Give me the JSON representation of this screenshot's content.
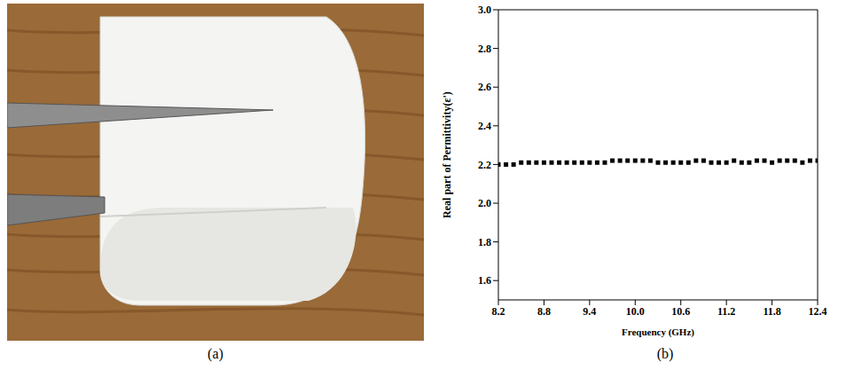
{
  "photo": {
    "caption": "(a)"
  },
  "chart_data": {
    "type": "scatter",
    "caption": "(b)",
    "x_label": "Frequency (GHz)",
    "y_label": "Real part of Permittivity(ε')",
    "x": [
      8.2,
      8.3,
      8.4,
      8.5,
      8.6,
      8.7,
      8.8,
      8.9,
      9.0,
      9.1,
      9.2,
      9.3,
      9.4,
      9.5,
      9.6,
      9.7,
      9.8,
      9.9,
      10.0,
      10.1,
      10.2,
      10.3,
      10.4,
      10.5,
      10.6,
      10.7,
      10.8,
      10.9,
      11.0,
      11.1,
      11.2,
      11.3,
      11.4,
      11.5,
      11.6,
      11.7,
      11.8,
      11.9,
      12.0,
      12.1,
      12.2,
      12.3,
      12.4
    ],
    "values": [
      2.2,
      2.2,
      2.2,
      2.21,
      2.21,
      2.21,
      2.21,
      2.21,
      2.21,
      2.21,
      2.21,
      2.21,
      2.21,
      2.21,
      2.21,
      2.22,
      2.22,
      2.22,
      2.22,
      2.22,
      2.22,
      2.21,
      2.21,
      2.21,
      2.21,
      2.21,
      2.22,
      2.22,
      2.21,
      2.21,
      2.21,
      2.22,
      2.21,
      2.21,
      2.22,
      2.22,
      2.21,
      2.22,
      2.22,
      2.22,
      2.21,
      2.22,
      2.22
    ],
    "color": "#000000",
    "marker": "square",
    "xlim": [
      8.2,
      12.4
    ],
    "xticks": [
      8.2,
      8.8,
      9.4,
      {
        "value": 10,
        "label": "10.0"
      },
      10.6,
      11.2,
      11.8,
      12.4
    ],
    "ylim": [
      1.5,
      3
    ],
    "yticks": [
      1.6,
      1.8,
      {
        "value": 2,
        "label": "2.0"
      },
      2.2,
      2.4,
      2.6,
      2.8,
      {
        "value": 3,
        "label": "3.0"
      }
    ]
  }
}
